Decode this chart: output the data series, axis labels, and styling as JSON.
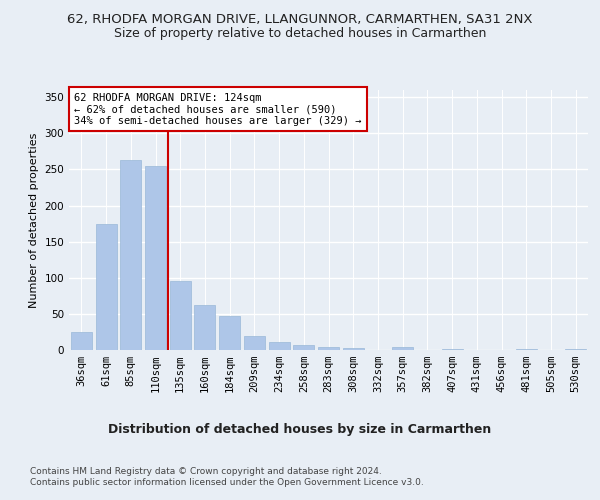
{
  "title1": "62, RHODFA MORGAN DRIVE, LLANGUNNOR, CARMARTHEN, SA31 2NX",
  "title2": "Size of property relative to detached houses in Carmarthen",
  "xlabel": "Distribution of detached houses by size in Carmarthen",
  "ylabel": "Number of detached properties",
  "footnote": "Contains HM Land Registry data © Crown copyright and database right 2024.\nContains public sector information licensed under the Open Government Licence v3.0.",
  "bin_labels": [
    "36sqm",
    "61sqm",
    "85sqm",
    "110sqm",
    "135sqm",
    "160sqm",
    "184sqm",
    "209sqm",
    "234sqm",
    "258sqm",
    "283sqm",
    "308sqm",
    "332sqm",
    "357sqm",
    "382sqm",
    "407sqm",
    "431sqm",
    "456sqm",
    "481sqm",
    "505sqm",
    "530sqm"
  ],
  "bar_heights": [
    25,
    175,
    263,
    255,
    95,
    62,
    47,
    19,
    11,
    7,
    4,
    3,
    0,
    4,
    0,
    2,
    0,
    0,
    1,
    0,
    1
  ],
  "bar_color": "#aec6e8",
  "bar_edge_color": "#9ab8d8",
  "vline_color": "#cc0000",
  "vline_x_data": 3.52,
  "annotation_text": "62 RHODFA MORGAN DRIVE: 124sqm\n← 62% of detached houses are smaller (590)\n34% of semi-detached houses are larger (329) →",
  "annotation_box_facecolor": "#ffffff",
  "annotation_box_edgecolor": "#cc0000",
  "ylim": [
    0,
    360
  ],
  "yticks": [
    0,
    50,
    100,
    150,
    200,
    250,
    300,
    350
  ],
  "background_color": "#e8eef5",
  "grid_color": "#ffffff",
  "title1_fontsize": 9.5,
  "title2_fontsize": 9,
  "xlabel_fontsize": 9,
  "ylabel_fontsize": 8,
  "tick_fontsize": 7.5,
  "annotation_fontsize": 7.5,
  "footnote_fontsize": 6.5
}
